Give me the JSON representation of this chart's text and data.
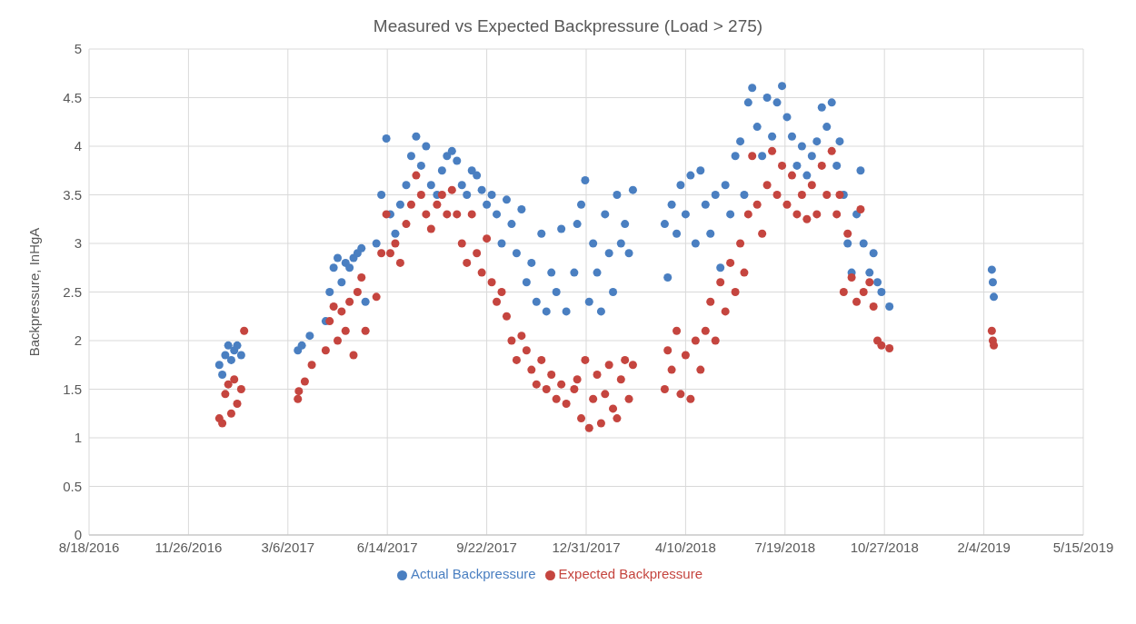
{
  "chart_data": {
    "type": "scatter",
    "title": "Measured vs Expected Backpressure (Load > 275)",
    "ylabel": "Backpressure, InHgA",
    "xlim": [
      "2016-08-18",
      "2019-05-15"
    ],
    "xticks": [
      {
        "value": "2016-08-18",
        "label": "8/18/2016"
      },
      {
        "value": "2016-11-26",
        "label": "11/26/2016"
      },
      {
        "value": "2017-03-06",
        "label": "3/6/2017"
      },
      {
        "value": "2017-06-14",
        "label": "6/14/2017"
      },
      {
        "value": "2017-09-22",
        "label": "9/22/2017"
      },
      {
        "value": "2017-12-31",
        "label": "12/31/2017"
      },
      {
        "value": "2018-04-10",
        "label": "4/10/2018"
      },
      {
        "value": "2018-07-19",
        "label": "7/19/2018"
      },
      {
        "value": "2018-10-27",
        "label": "10/27/2018"
      },
      {
        "value": "2019-02-04",
        "label": "2/4/2019"
      },
      {
        "value": "2019-05-15",
        "label": "5/15/2019"
      }
    ],
    "ylim": [
      0,
      5
    ],
    "yticks": [
      0,
      0.5,
      1,
      1.5,
      2,
      2.5,
      3,
      3.5,
      4,
      4.5,
      5
    ],
    "grid": true,
    "legend": "bottom",
    "marker": "circle",
    "series": [
      {
        "name": "Actual Backpressure",
        "color": "#4a7fc1",
        "x": [
          "2016-12-27",
          "2016-12-30",
          "2017-01-02",
          "2017-01-05",
          "2017-01-08",
          "2017-01-11",
          "2017-01-14",
          "2017-01-18",
          "2017-03-16",
          "2017-03-20",
          "2017-03-28",
          "2017-04-13",
          "2017-04-17",
          "2017-04-21",
          "2017-04-25",
          "2017-04-29",
          "2017-05-03",
          "2017-05-07",
          "2017-05-11",
          "2017-05-15",
          "2017-05-19",
          "2017-05-23",
          "2017-06-03",
          "2017-06-08",
          "2017-06-13",
          "2017-06-17",
          "2017-06-22",
          "2017-06-27",
          "2017-07-03",
          "2017-07-08",
          "2017-07-13",
          "2017-07-18",
          "2017-07-23",
          "2017-07-28",
          "2017-08-03",
          "2017-08-08",
          "2017-08-13",
          "2017-08-18",
          "2017-08-23",
          "2017-08-28",
          "2017-09-02",
          "2017-09-07",
          "2017-09-12",
          "2017-09-17",
          "2017-09-22",
          "2017-09-27",
          "2017-10-02",
          "2017-10-07",
          "2017-10-12",
          "2017-10-17",
          "2017-10-22",
          "2017-10-27",
          "2017-11-01",
          "2017-11-06",
          "2017-11-11",
          "2017-11-16",
          "2017-11-21",
          "2017-11-26",
          "2017-12-01",
          "2017-12-06",
          "2017-12-11",
          "2017-12-19",
          "2017-12-22",
          "2017-12-26",
          "2017-12-30",
          "2018-01-03",
          "2018-01-07",
          "2018-01-11",
          "2018-01-15",
          "2018-01-19",
          "2018-01-23",
          "2018-01-27",
          "2018-01-31",
          "2018-02-04",
          "2018-02-08",
          "2018-02-12",
          "2018-02-16",
          "2018-03-20",
          "2018-03-23",
          "2018-03-27",
          "2018-04-01",
          "2018-04-05",
          "2018-04-10",
          "2018-04-15",
          "2018-04-20",
          "2018-04-25",
          "2018-04-30",
          "2018-05-05",
          "2018-05-10",
          "2018-05-15",
          "2018-05-20",
          "2018-05-25",
          "2018-05-30",
          "2018-06-04",
          "2018-06-08",
          "2018-06-12",
          "2018-06-16",
          "2018-06-21",
          "2018-06-26",
          "2018-07-01",
          "2018-07-06",
          "2018-07-11",
          "2018-07-16",
          "2018-07-21",
          "2018-07-26",
          "2018-07-31",
          "2018-08-05",
          "2018-08-10",
          "2018-08-15",
          "2018-08-20",
          "2018-08-25",
          "2018-08-30",
          "2018-09-04",
          "2018-09-09",
          "2018-09-12",
          "2018-09-16",
          "2018-09-20",
          "2018-09-24",
          "2018-09-29",
          "2018-10-03",
          "2018-10-06",
          "2018-10-12",
          "2018-10-16",
          "2018-10-20",
          "2018-10-24",
          "2018-11-01",
          "2019-02-12",
          "2019-02-13",
          "2019-02-14"
        ],
        "values": [
          1.75,
          1.65,
          1.85,
          1.95,
          1.8,
          1.9,
          1.95,
          1.85,
          1.9,
          1.95,
          2.05,
          2.2,
          2.5,
          2.75,
          2.85,
          2.6,
          2.8,
          2.75,
          2.85,
          2.9,
          2.95,
          2.4,
          3.0,
          3.5,
          4.08,
          3.3,
          3.1,
          3.4,
          3.6,
          3.9,
          4.1,
          3.8,
          4.0,
          3.6,
          3.5,
          3.75,
          3.9,
          3.95,
          3.85,
          3.6,
          3.5,
          3.75,
          3.7,
          3.55,
          3.4,
          3.5,
          3.3,
          3.0,
          3.45,
          3.2,
          2.9,
          3.35,
          2.6,
          2.8,
          2.4,
          3.1,
          2.3,
          2.7,
          2.5,
          3.15,
          2.3,
          2.7,
          3.2,
          3.4,
          3.65,
          2.4,
          3.0,
          2.7,
          2.3,
          3.3,
          2.9,
          2.5,
          3.5,
          3.0,
          3.2,
          2.9,
          3.55,
          3.2,
          2.65,
          3.4,
          3.1,
          3.6,
          3.3,
          3.7,
          3.0,
          3.75,
          3.4,
          3.1,
          3.5,
          2.75,
          3.6,
          3.3,
          3.9,
          4.05,
          3.5,
          4.45,
          4.6,
          4.2,
          3.9,
          4.5,
          4.1,
          4.45,
          4.62,
          4.3,
          4.1,
          3.8,
          4.0,
          3.7,
          3.9,
          4.05,
          4.4,
          4.2,
          4.45,
          3.8,
          4.05,
          3.5,
          3.0,
          2.7,
          3.3,
          3.75,
          3.0,
          2.7,
          2.9,
          2.6,
          2.5,
          2.35,
          2.73,
          2.6,
          2.45
        ]
      },
      {
        "name": "Expected Backpressure",
        "color": "#c5453f",
        "x": [
          "2016-12-27",
          "2016-12-30",
          "2017-01-02",
          "2017-01-05",
          "2017-01-08",
          "2017-01-11",
          "2017-01-14",
          "2017-01-18",
          "2017-01-21",
          "2017-03-16",
          "2017-03-17",
          "2017-03-23",
          "2017-03-30",
          "2017-04-13",
          "2017-04-17",
          "2017-04-21",
          "2017-04-25",
          "2017-04-29",
          "2017-05-03",
          "2017-05-07",
          "2017-05-11",
          "2017-05-15",
          "2017-05-19",
          "2017-05-23",
          "2017-06-03",
          "2017-06-08",
          "2017-06-13",
          "2017-06-17",
          "2017-06-22",
          "2017-06-27",
          "2017-07-03",
          "2017-07-08",
          "2017-07-13",
          "2017-07-18",
          "2017-07-23",
          "2017-07-28",
          "2017-08-03",
          "2017-08-08",
          "2017-08-13",
          "2017-08-18",
          "2017-08-23",
          "2017-08-28",
          "2017-09-02",
          "2017-09-07",
          "2017-09-12",
          "2017-09-17",
          "2017-09-22",
          "2017-09-27",
          "2017-10-02",
          "2017-10-07",
          "2017-10-12",
          "2017-10-17",
          "2017-10-22",
          "2017-10-27",
          "2017-11-01",
          "2017-11-06",
          "2017-11-11",
          "2017-11-16",
          "2017-11-21",
          "2017-11-26",
          "2017-12-01",
          "2017-12-06",
          "2017-12-11",
          "2017-12-19",
          "2017-12-22",
          "2017-12-26",
          "2017-12-30",
          "2018-01-03",
          "2018-01-07",
          "2018-01-11",
          "2018-01-15",
          "2018-01-19",
          "2018-01-23",
          "2018-01-27",
          "2018-01-31",
          "2018-02-04",
          "2018-02-08",
          "2018-02-12",
          "2018-02-16",
          "2018-03-20",
          "2018-03-23",
          "2018-03-27",
          "2018-04-01",
          "2018-04-05",
          "2018-04-10",
          "2018-04-15",
          "2018-04-20",
          "2018-04-25",
          "2018-04-30",
          "2018-05-05",
          "2018-05-10",
          "2018-05-15",
          "2018-05-20",
          "2018-05-25",
          "2018-05-30",
          "2018-06-04",
          "2018-06-08",
          "2018-06-12",
          "2018-06-16",
          "2018-06-21",
          "2018-06-26",
          "2018-07-01",
          "2018-07-06",
          "2018-07-11",
          "2018-07-16",
          "2018-07-21",
          "2018-07-26",
          "2018-07-31",
          "2018-08-05",
          "2018-08-10",
          "2018-08-15",
          "2018-08-20",
          "2018-08-25",
          "2018-08-30",
          "2018-09-04",
          "2018-09-09",
          "2018-09-12",
          "2018-09-16",
          "2018-09-20",
          "2018-09-24",
          "2018-09-29",
          "2018-10-03",
          "2018-10-06",
          "2018-10-12",
          "2018-10-16",
          "2018-10-20",
          "2018-10-24",
          "2018-11-01",
          "2019-02-12",
          "2019-02-13",
          "2019-02-14"
        ],
        "values": [
          1.2,
          1.15,
          1.45,
          1.55,
          1.25,
          1.6,
          1.35,
          1.5,
          2.1,
          1.4,
          1.48,
          1.58,
          1.75,
          1.9,
          2.2,
          2.35,
          2.0,
          2.3,
          2.1,
          2.4,
          1.85,
          2.5,
          2.65,
          2.1,
          2.45,
          2.9,
          3.3,
          2.9,
          3.0,
          2.8,
          3.2,
          3.4,
          3.7,
          3.5,
          3.3,
          3.15,
          3.4,
          3.5,
          3.3,
          3.55,
          3.3,
          3.0,
          2.8,
          3.3,
          2.9,
          2.7,
          3.05,
          2.6,
          2.4,
          2.5,
          2.25,
          2.0,
          1.8,
          2.05,
          1.9,
          1.7,
          1.55,
          1.8,
          1.5,
          1.65,
          1.4,
          1.55,
          1.35,
          1.5,
          1.6,
          1.2,
          1.8,
          1.1,
          1.4,
          1.65,
          1.15,
          1.45,
          1.75,
          1.3,
          1.2,
          1.6,
          1.8,
          1.4,
          1.75,
          1.5,
          1.9,
          1.7,
          2.1,
          1.45,
          1.85,
          1.4,
          2.0,
          1.7,
          2.1,
          2.4,
          2.0,
          2.6,
          2.3,
          2.8,
          2.5,
          3.0,
          2.7,
          3.3,
          3.9,
          3.4,
          3.1,
          3.6,
          3.95,
          3.5,
          3.8,
          3.4,
          3.7,
          3.3,
          3.5,
          3.25,
          3.6,
          3.3,
          3.8,
          3.5,
          3.95,
          3.3,
          3.5,
          2.5,
          3.1,
          2.65,
          2.4,
          3.35,
          2.5,
          2.6,
          2.35,
          2.0,
          1.95,
          1.92,
          2.1,
          2.0,
          1.95
        ]
      }
    ]
  }
}
